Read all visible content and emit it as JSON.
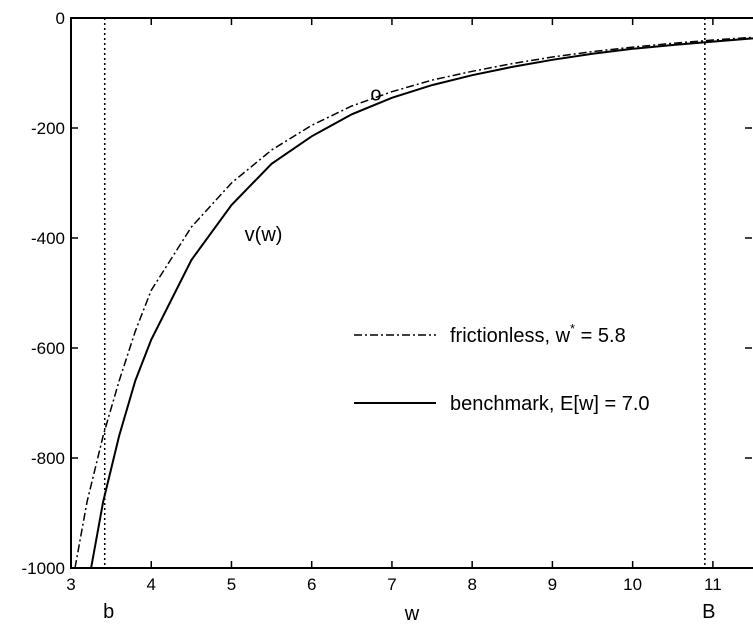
{
  "chart_data": {
    "type": "line",
    "title": "",
    "xlabel": "w",
    "ylabel": "",
    "xlim": [
      3,
      11.5
    ],
    "ylim": [
      -1000,
      0
    ],
    "x_ticks": [
      3,
      4,
      5,
      6,
      7,
      8,
      9,
      10,
      11
    ],
    "y_ticks": [
      0,
      -200,
      -400,
      -600,
      -800,
      -1000
    ],
    "x_tick_labels": [
      "3",
      "4",
      "5",
      "6",
      "7",
      "8",
      "9",
      "10",
      "11"
    ],
    "y_tick_labels": [
      "0",
      "-200",
      "-400",
      "-600",
      "-800",
      "-1000"
    ],
    "grid": false,
    "legend_position": "center-right",
    "series": [
      {
        "name": "frictionless, w* = 5.8",
        "name_main": "frictionless, w",
        "name_sup": "*",
        "name_tail": " = 5.8",
        "style": "dashdot",
        "x": [
          3.05,
          3.2,
          3.4,
          3.6,
          3.8,
          4.0,
          4.5,
          5.0,
          5.5,
          6.0,
          6.5,
          7.0,
          7.5,
          8.0,
          8.5,
          9.0,
          9.5,
          10.0,
          10.5,
          11.0,
          11.5
        ],
        "y": [
          -1000,
          -880,
          -760,
          -660,
          -570,
          -495,
          -380,
          -300,
          -240,
          -195,
          -160,
          -134,
          -113,
          -97,
          -83,
          -71,
          -61,
          -53,
          -46,
          -40,
          -35
        ]
      },
      {
        "name": "benchmark, E[w] = 7.0",
        "style": "solid",
        "x": [
          3.25,
          3.4,
          3.6,
          3.8,
          4.0,
          4.5,
          5.0,
          5.5,
          6.0,
          6.5,
          7.0,
          7.5,
          8.0,
          8.5,
          9.0,
          9.5,
          10.0,
          10.5,
          11.0,
          11.5
        ],
        "y": [
          -1000,
          -880,
          -760,
          -660,
          -585,
          -440,
          -340,
          -265,
          -215,
          -175,
          -145,
          -122,
          -104,
          -89,
          -76,
          -65,
          -56,
          -49,
          -43,
          -37
        ]
      }
    ],
    "vertical_lines": [
      {
        "x": 3.42,
        "style": "dotted",
        "label": "b"
      },
      {
        "x": 10.9,
        "style": "dotted",
        "label": "B"
      }
    ],
    "annotations": [
      {
        "text": "v(w)",
        "x": 5.4,
        "y": -405
      },
      {
        "text": "o",
        "x": 6.8,
        "y": -150
      }
    ]
  }
}
